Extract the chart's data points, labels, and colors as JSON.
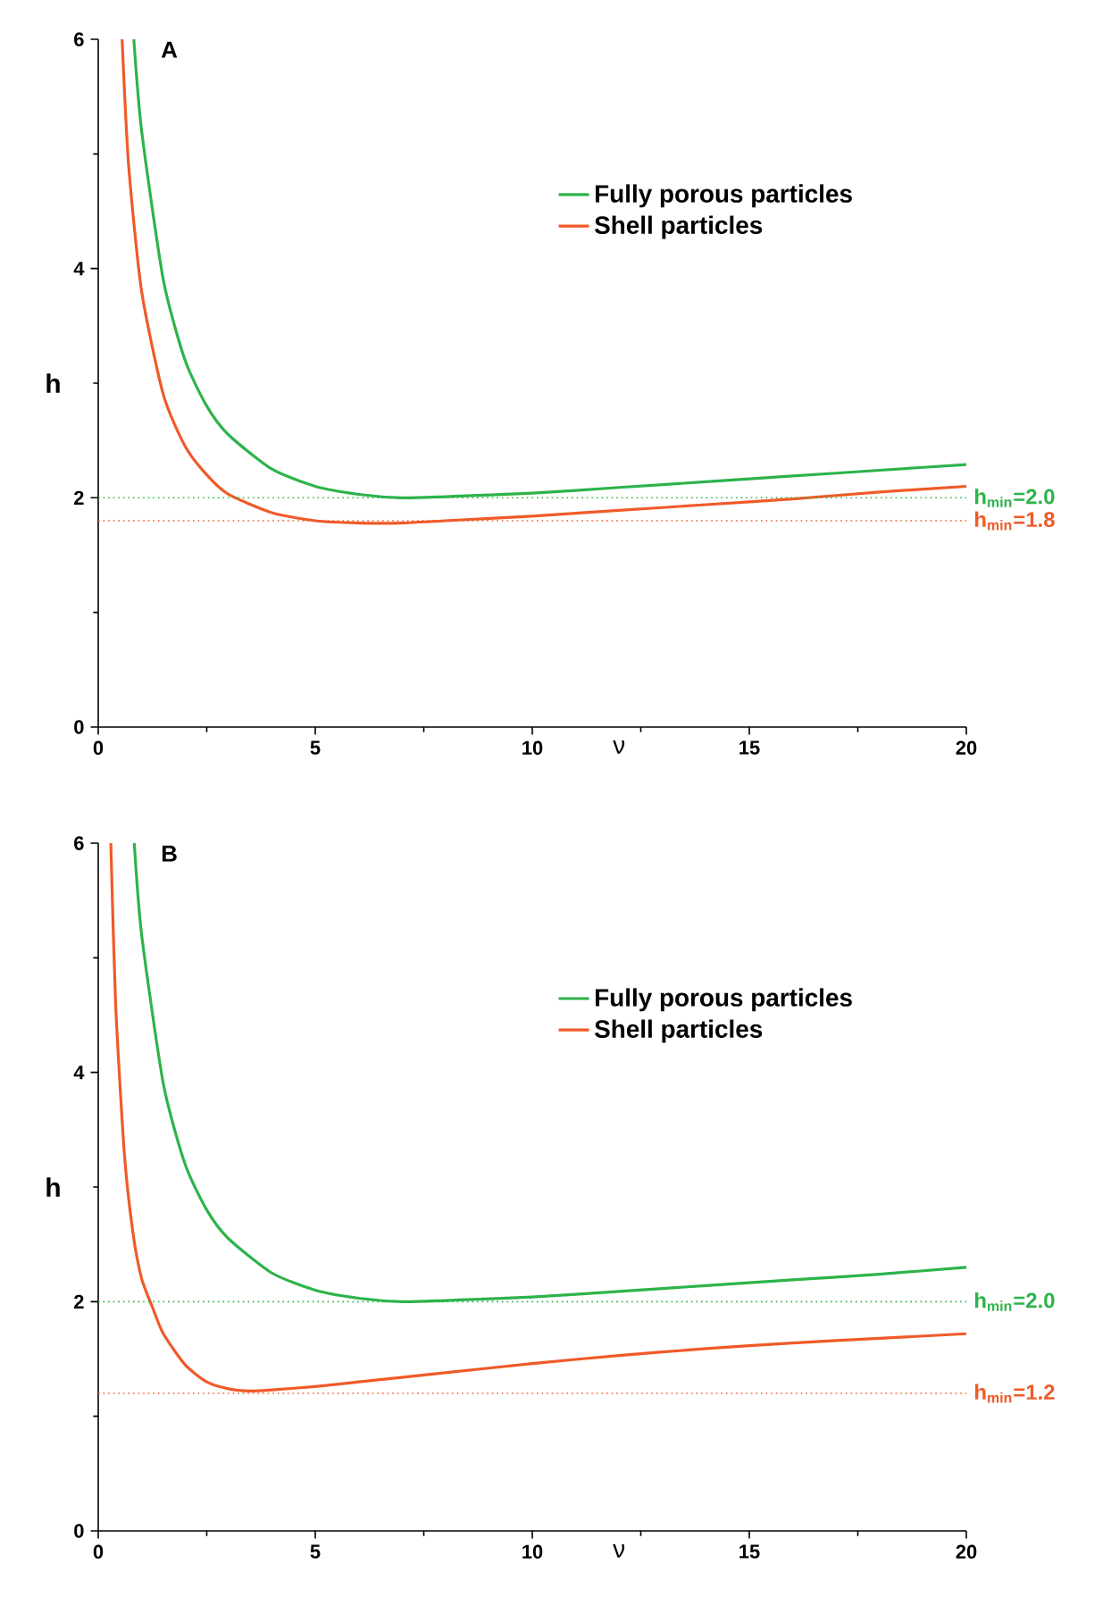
{
  "chart_data": [
    {
      "type": "line",
      "title": "A",
      "xlabel": "ν",
      "ylabel": "h",
      "xlim": [
        0,
        20
      ],
      "ylim": [
        0,
        6
      ],
      "xticks": [
        0,
        5,
        10,
        15,
        20
      ],
      "yticks": [
        0,
        2,
        4,
        6
      ],
      "legend": "top right",
      "series": [
        {
          "name": "Fully porous particles",
          "color": "#2db34a",
          "x": [
            0.82,
            1,
            1.5,
            2,
            2.5,
            3,
            4,
            5,
            6,
            7,
            8,
            10,
            12,
            14,
            16,
            18,
            20
          ],
          "values": [
            6.0,
            5.2,
            3.9,
            3.2,
            2.8,
            2.55,
            2.25,
            2.1,
            2.03,
            2.0,
            2.01,
            2.04,
            2.09,
            2.14,
            2.19,
            2.24,
            2.29
          ]
        },
        {
          "name": "Shell particles",
          "color": "#f05a28",
          "x": [
            0.55,
            0.7,
            1,
            1.5,
            2,
            2.5,
            3,
            4,
            5,
            6,
            7,
            8,
            10,
            12,
            14,
            16,
            18,
            20
          ],
          "values": [
            6.0,
            4.9,
            3.8,
            2.9,
            2.45,
            2.2,
            2.03,
            1.87,
            1.8,
            1.78,
            1.78,
            1.8,
            1.84,
            1.89,
            1.94,
            1.99,
            2.05,
            2.1
          ]
        }
      ],
      "ref_lines": [
        {
          "axis": "y",
          "value": 2.0,
          "label": "h$_{min}$=2.0",
          "color": "#2db34a",
          "line_style": "dotted"
        },
        {
          "axis": "y",
          "value": 1.8,
          "label": "h$_{min}$=1.8",
          "color": "#f05a28",
          "line_style": "dotted"
        }
      ]
    },
    {
      "type": "line",
      "title": "B",
      "xlabel": "ν",
      "ylabel": "h",
      "xlim": [
        0,
        20
      ],
      "ylim": [
        0,
        6
      ],
      "xticks": [
        0,
        5,
        10,
        15,
        20
      ],
      "yticks": [
        0,
        2,
        4,
        6
      ],
      "legend": "top right",
      "series": [
        {
          "name": "Fully porous particles",
          "color": "#2db34a",
          "x": [
            0.83,
            1,
            1.5,
            2,
            2.5,
            3,
            4,
            5,
            6,
            7,
            8,
            10,
            12,
            14,
            16,
            18,
            20
          ],
          "values": [
            6.0,
            5.2,
            3.9,
            3.2,
            2.8,
            2.55,
            2.25,
            2.1,
            2.03,
            2.0,
            2.01,
            2.04,
            2.09,
            2.14,
            2.19,
            2.24,
            2.3
          ]
        },
        {
          "name": "Shell particles",
          "color": "#f05a28",
          "x": [
            0.29,
            0.4,
            0.6,
            0.8,
            1,
            1.25,
            1.5,
            2,
            2.5,
            3,
            3.5,
            4,
            5,
            6,
            8,
            10,
            12,
            14,
            16,
            18,
            20
          ],
          "values": [
            6.0,
            4.6,
            3.3,
            2.6,
            2.2,
            1.95,
            1.72,
            1.45,
            1.3,
            1.24,
            1.22,
            1.23,
            1.26,
            1.3,
            1.38,
            1.46,
            1.53,
            1.59,
            1.64,
            1.68,
            1.72
          ]
        }
      ],
      "ref_lines": [
        {
          "axis": "y",
          "value": 2.0,
          "label": "h$_{min}$=2.0",
          "color": "#2db34a",
          "line_style": "dotted"
        },
        {
          "axis": "y",
          "value": 1.2,
          "label": "h$_{min}$=1.2",
          "color": "#f05a28",
          "line_style": "dotted"
        }
      ]
    }
  ]
}
